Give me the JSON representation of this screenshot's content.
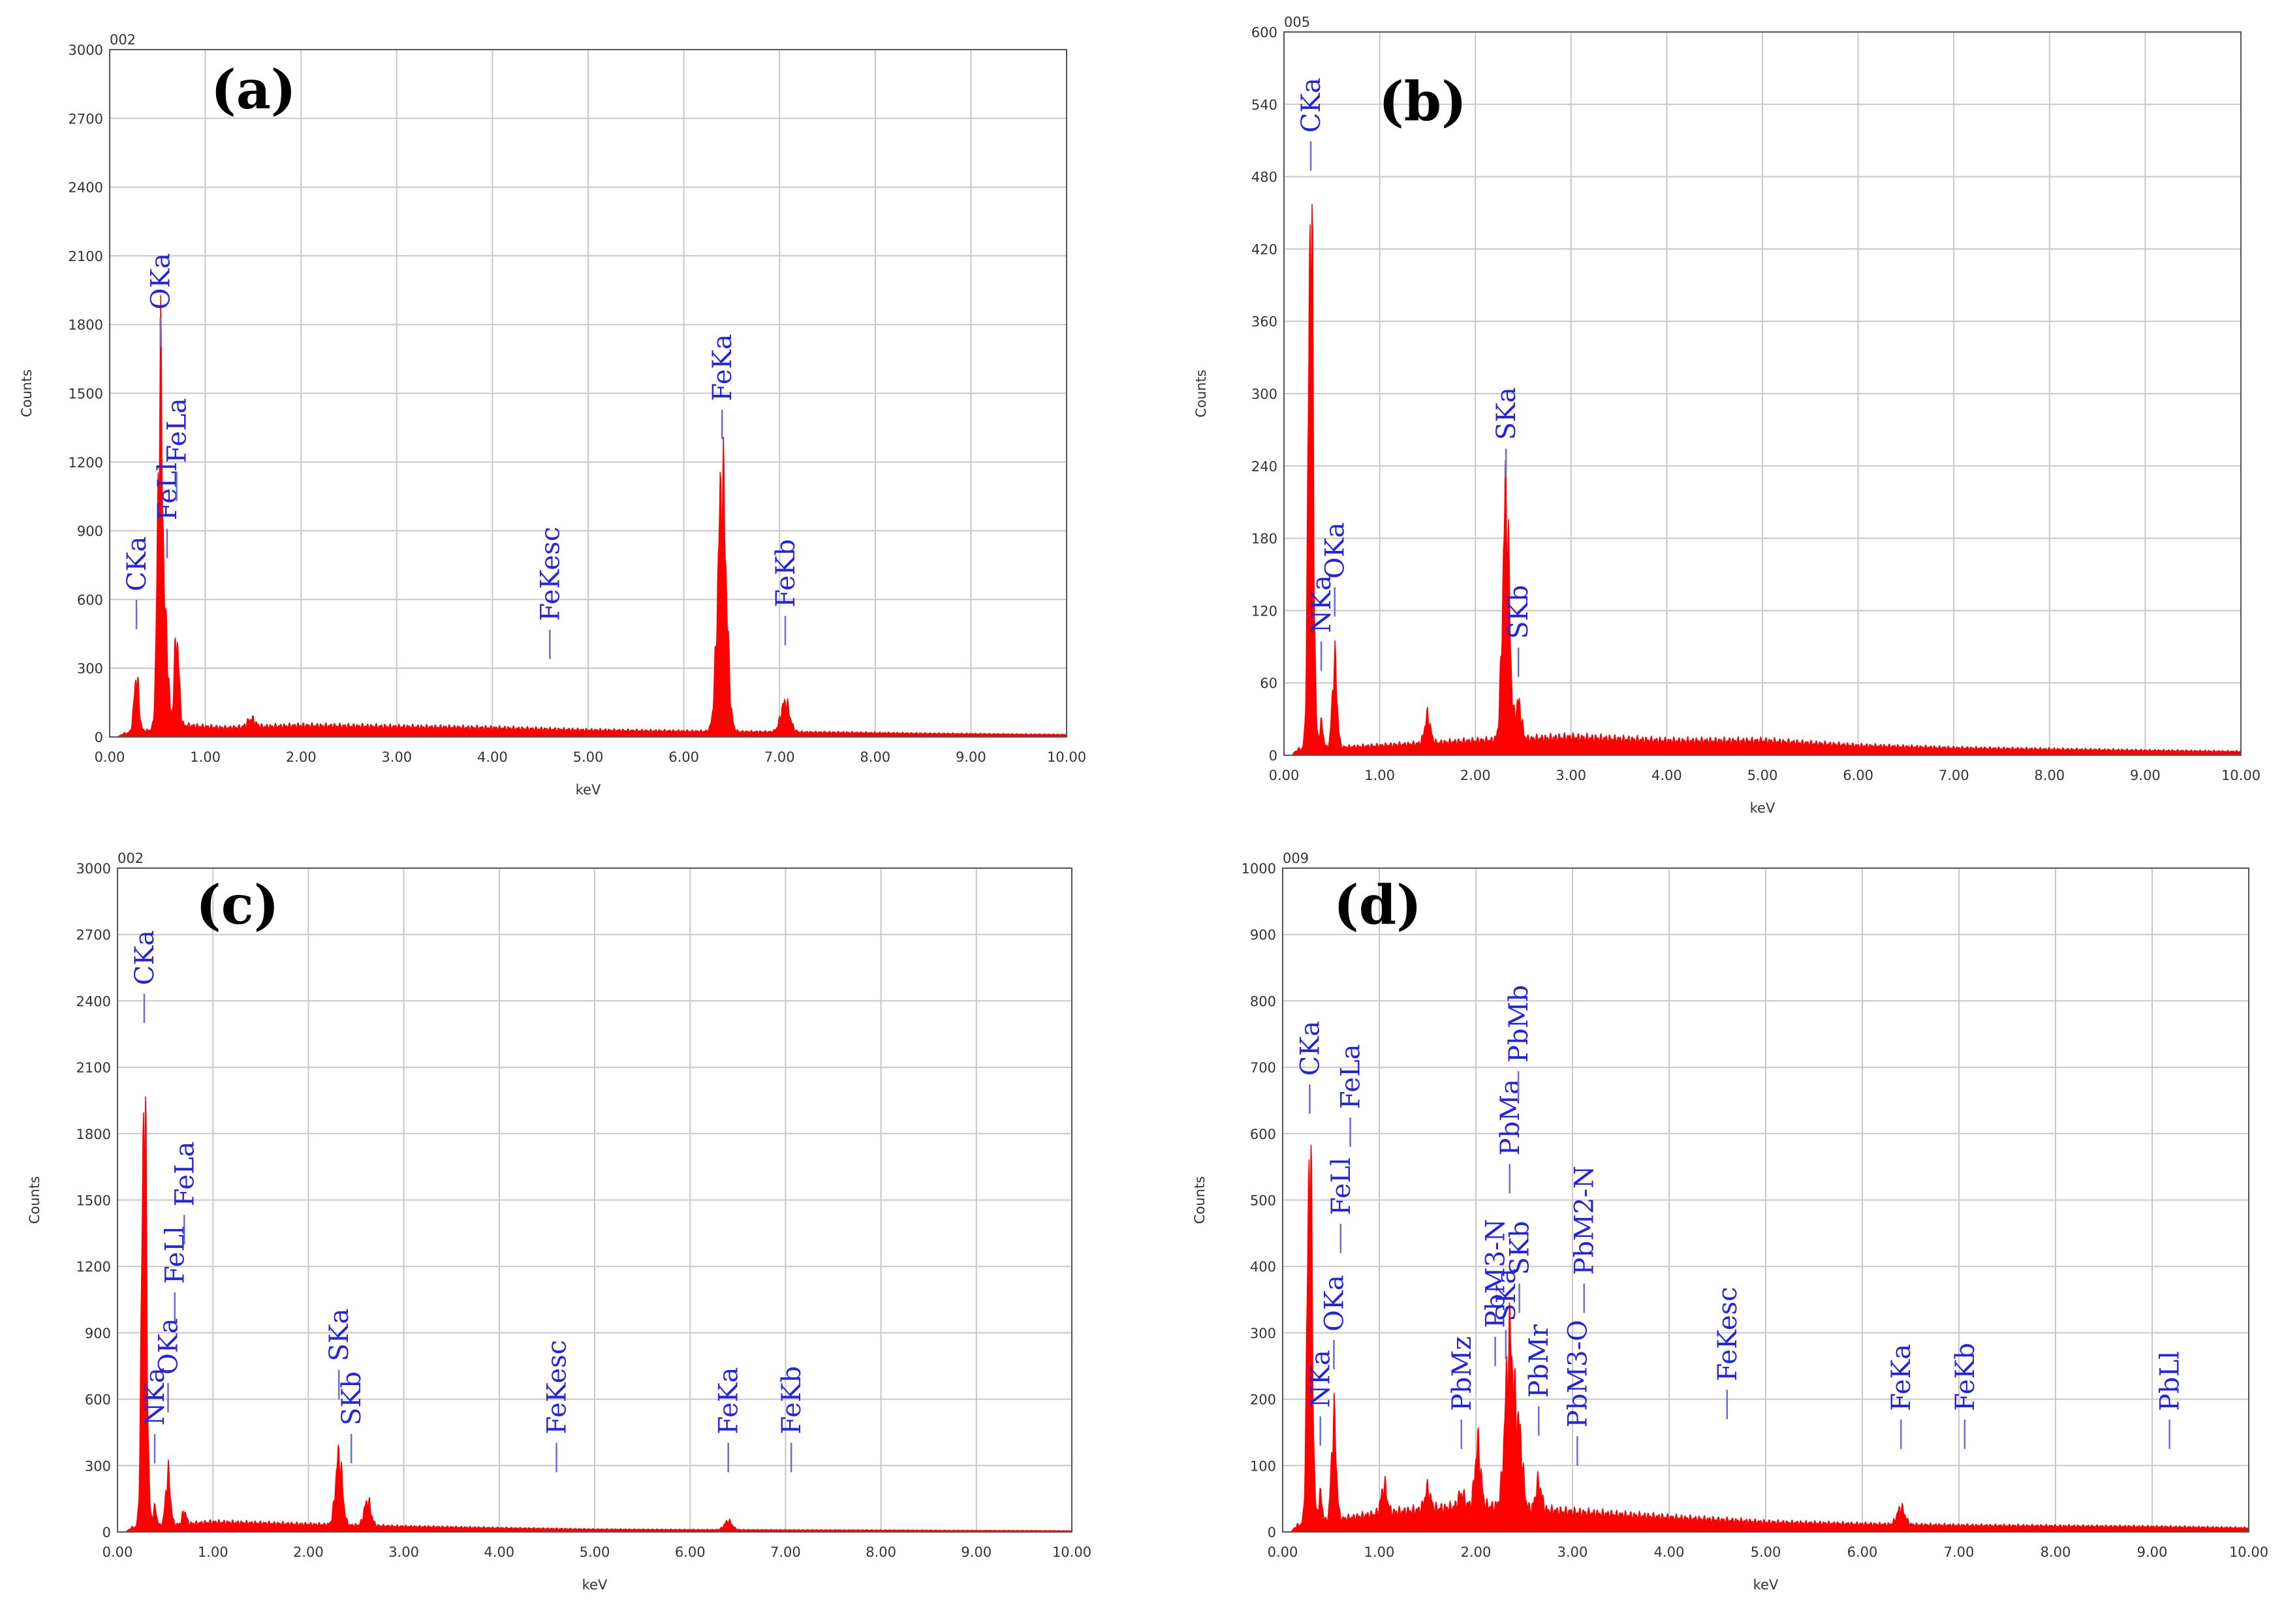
{
  "chart_data": [
    {
      "type": "area",
      "panel": "(a)",
      "sample_id": "002",
      "xlabel": "keV",
      "ylabel": "Counts",
      "xlim": [
        0,
        10
      ],
      "ylim": [
        0,
        3000
      ],
      "x_ticks": [
        "0.00",
        "1.00",
        "2.00",
        "3.00",
        "4.00",
        "5.00",
        "6.00",
        "7.00",
        "8.00",
        "9.00",
        "10.00"
      ],
      "y_ticks": [
        "0",
        "300",
        "600",
        "900",
        "1200",
        "1500",
        "1800",
        "2100",
        "2400",
        "2700",
        "3000"
      ],
      "grid": true,
      "baseline": [
        [
          0.1,
          5
        ],
        [
          0.15,
          15
        ],
        [
          0.8,
          50
        ],
        [
          1.2,
          40
        ],
        [
          2.0,
          50
        ],
        [
          3.0,
          45
        ],
        [
          4.0,
          40
        ],
        [
          5.0,
          30
        ],
        [
          6.0,
          25
        ],
        [
          7.5,
          20
        ],
        [
          8.5,
          15
        ],
        [
          10.0,
          10
        ]
      ],
      "peaks": [
        {
          "x": 0.28,
          "y": 240,
          "w": 0.025
        },
        {
          "x": 0.53,
          "y": 1510,
          "w": 0.028
        },
        {
          "x": 0.6,
          "y": 300,
          "w": 0.02
        },
        {
          "x": 0.7,
          "y": 390,
          "w": 0.025
        },
        {
          "x": 1.48,
          "y": 35,
          "w": 0.04
        },
        {
          "x": 6.4,
          "y": 1080,
          "w": 0.045
        },
        {
          "x": 7.06,
          "y": 130,
          "w": 0.045
        }
      ],
      "annotations": [
        {
          "label": "CKa",
          "x": 0.28,
          "y": 470
        },
        {
          "label": "OKa",
          "x": 0.53,
          "y": 1700
        },
        {
          "label": "FeLl",
          "x": 0.6,
          "y": 780
        },
        {
          "label": "FeLa",
          "x": 0.7,
          "y": 1030
        },
        {
          "label": "FeKesc",
          "x": 4.6,
          "y": 340
        },
        {
          "label": "FeKa",
          "x": 6.4,
          "y": 1300
        },
        {
          "label": "FeKb",
          "x": 7.06,
          "y": 400
        }
      ]
    },
    {
      "type": "area",
      "panel": "(b)",
      "sample_id": "005",
      "xlabel": "keV",
      "ylabel": "Counts",
      "xlim": [
        0,
        10
      ],
      "ylim": [
        0,
        600
      ],
      "x_ticks": [
        "0.00",
        "1.00",
        "2.00",
        "3.00",
        "4.00",
        "5.00",
        "6.00",
        "7.00",
        "8.00",
        "9.00",
        "10.00"
      ],
      "y_ticks": [
        "0",
        "60",
        "120",
        "180",
        "240",
        "300",
        "360",
        "420",
        "480",
        "540",
        "600"
      ],
      "grid": true,
      "baseline": [
        [
          0.1,
          2
        ],
        [
          0.15,
          5
        ],
        [
          1.0,
          8
        ],
        [
          2.0,
          12
        ],
        [
          3.0,
          15
        ],
        [
          4.0,
          12
        ],
        [
          5.0,
          12
        ],
        [
          6.0,
          8
        ],
        [
          7.0,
          6
        ],
        [
          8.0,
          5
        ],
        [
          9.0,
          4
        ],
        [
          10.0,
          3
        ]
      ],
      "peaks": [
        {
          "x": 0.28,
          "y": 460,
          "w": 0.025
        },
        {
          "x": 0.39,
          "y": 20,
          "w": 0.02
        },
        {
          "x": 0.53,
          "y": 70,
          "w": 0.025
        },
        {
          "x": 1.5,
          "y": 22,
          "w": 0.03
        },
        {
          "x": 2.32,
          "y": 200,
          "w": 0.035
        },
        {
          "x": 2.45,
          "y": 30,
          "w": 0.03
        }
      ],
      "annotations": [
        {
          "label": "CKa",
          "x": 0.28,
          "y": 485
        },
        {
          "label": "NKa",
          "x": 0.39,
          "y": 70
        },
        {
          "label": "OKa",
          "x": 0.53,
          "y": 115
        },
        {
          "label": "SKa",
          "x": 2.32,
          "y": 230
        },
        {
          "label": "SKb",
          "x": 2.45,
          "y": 65
        }
      ]
    },
    {
      "type": "area",
      "panel": "(c)",
      "sample_id": "002",
      "xlabel": "keV",
      "ylabel": "Counts",
      "xlim": [
        0,
        10
      ],
      "ylim": [
        0,
        3000
      ],
      "x_ticks": [
        "0.00",
        "1.00",
        "2.00",
        "3.00",
        "4.00",
        "5.00",
        "6.00",
        "7.00",
        "8.00",
        "9.00",
        "10.00"
      ],
      "y_ticks": [
        "0",
        "300",
        "600",
        "900",
        "1200",
        "1500",
        "1800",
        "2100",
        "2400",
        "2700",
        "3000"
      ],
      "grid": true,
      "baseline": [
        [
          0.1,
          5
        ],
        [
          0.15,
          20
        ],
        [
          1.0,
          45
        ],
        [
          1.5,
          40
        ],
        [
          2.0,
          35
        ],
        [
          3.0,
          25
        ],
        [
          4.0,
          18
        ],
        [
          5.0,
          12
        ],
        [
          6.0,
          10
        ],
        [
          8.0,
          8
        ],
        [
          10.0,
          5
        ]
      ],
      "peaks": [
        {
          "x": 0.28,
          "y": 1980,
          "w": 0.025
        },
        {
          "x": 0.39,
          "y": 80,
          "w": 0.02
        },
        {
          "x": 0.53,
          "y": 230,
          "w": 0.025
        },
        {
          "x": 0.7,
          "y": 60,
          "w": 0.02
        },
        {
          "x": 2.32,
          "y": 310,
          "w": 0.035
        },
        {
          "x": 2.62,
          "y": 110,
          "w": 0.035
        },
        {
          "x": 6.4,
          "y": 40,
          "w": 0.04
        }
      ],
      "annotations": [
        {
          "label": "CKa",
          "x": 0.28,
          "y": 2300
        },
        {
          "label": "NKa",
          "x": 0.39,
          "y": 310
        },
        {
          "label": "OKa",
          "x": 0.53,
          "y": 540
        },
        {
          "label": "FeLl",
          "x": 0.6,
          "y": 950
        },
        {
          "label": "FeLa",
          "x": 0.7,
          "y": 1300
        },
        {
          "label": "SKa",
          "x": 2.32,
          "y": 600
        },
        {
          "label": "SKb",
          "x": 2.45,
          "y": 310
        },
        {
          "label": "FeKesc",
          "x": 4.6,
          "y": 270
        },
        {
          "label": "FeKa",
          "x": 6.4,
          "y": 270
        },
        {
          "label": "FeKb",
          "x": 7.06,
          "y": 270
        }
      ]
    },
    {
      "type": "area",
      "panel": "(d)",
      "sample_id": "009",
      "xlabel": "keV",
      "ylabel": "Counts",
      "xlim": [
        0,
        10
      ],
      "ylim": [
        0,
        1000
      ],
      "x_ticks": [
        "0.00",
        "1.00",
        "2.00",
        "3.00",
        "4.00",
        "5.00",
        "6.00",
        "7.00",
        "8.00",
        "9.00",
        "10.00"
      ],
      "y_ticks": [
        "0",
        "100",
        "200",
        "300",
        "400",
        "500",
        "600",
        "700",
        "800",
        "900",
        "1000"
      ],
      "grid": true,
      "baseline": [
        [
          0.1,
          3
        ],
        [
          0.15,
          10
        ],
        [
          1.0,
          28
        ],
        [
          2.0,
          40
        ],
        [
          3.0,
          30
        ],
        [
          4.0,
          22
        ],
        [
          5.0,
          15
        ],
        [
          6.0,
          12
        ],
        [
          7.0,
          10
        ],
        [
          8.0,
          9
        ],
        [
          9.0,
          8
        ],
        [
          10.0,
          6
        ]
      ],
      "peaks": [
        {
          "x": 0.28,
          "y": 580,
          "w": 0.025
        },
        {
          "x": 0.39,
          "y": 40,
          "w": 0.02
        },
        {
          "x": 0.53,
          "y": 150,
          "w": 0.025
        },
        {
          "x": 1.05,
          "y": 40,
          "w": 0.03
        },
        {
          "x": 1.5,
          "y": 30,
          "w": 0.03
        },
        {
          "x": 1.85,
          "y": 20,
          "w": 0.03
        },
        {
          "x": 2.02,
          "y": 90,
          "w": 0.03
        },
        {
          "x": 2.35,
          "y": 250,
          "w": 0.045
        },
        {
          "x": 2.45,
          "y": 100,
          "w": 0.035
        },
        {
          "x": 2.65,
          "y": 40,
          "w": 0.03
        },
        {
          "x": 6.4,
          "y": 25,
          "w": 0.04
        }
      ],
      "annotations": [
        {
          "label": "CKa",
          "x": 0.28,
          "y": 630
        },
        {
          "label": "NKa",
          "x": 0.39,
          "y": 130
        },
        {
          "label": "OKa",
          "x": 0.53,
          "y": 245
        },
        {
          "label": "FeLl",
          "x": 0.6,
          "y": 420
        },
        {
          "label": "FeLa",
          "x": 0.7,
          "y": 580
        },
        {
          "label": "PbMz",
          "x": 1.85,
          "y": 125
        },
        {
          "label": "PbM3-N",
          "x": 2.2,
          "y": 250
        },
        {
          "label": "SKa",
          "x": 2.31,
          "y": 260
        },
        {
          "label": "SKb",
          "x": 2.45,
          "y": 330
        },
        {
          "label": "PbMa",
          "x": 2.35,
          "y": 510
        },
        {
          "label": "PbMb",
          "x": 2.44,
          "y": 650
        },
        {
          "label": "PbMr",
          "x": 2.65,
          "y": 145
        },
        {
          "label": "PbM3-O",
          "x": 3.05,
          "y": 100
        },
        {
          "label": "PbM2-N",
          "x": 3.12,
          "y": 330
        },
        {
          "label": "FeKesc",
          "x": 4.6,
          "y": 170
        },
        {
          "label": "FeKa",
          "x": 6.4,
          "y": 125
        },
        {
          "label": "FeKb",
          "x": 7.06,
          "y": 125
        },
        {
          "label": "PbLl",
          "x": 9.18,
          "y": 125
        }
      ]
    }
  ]
}
